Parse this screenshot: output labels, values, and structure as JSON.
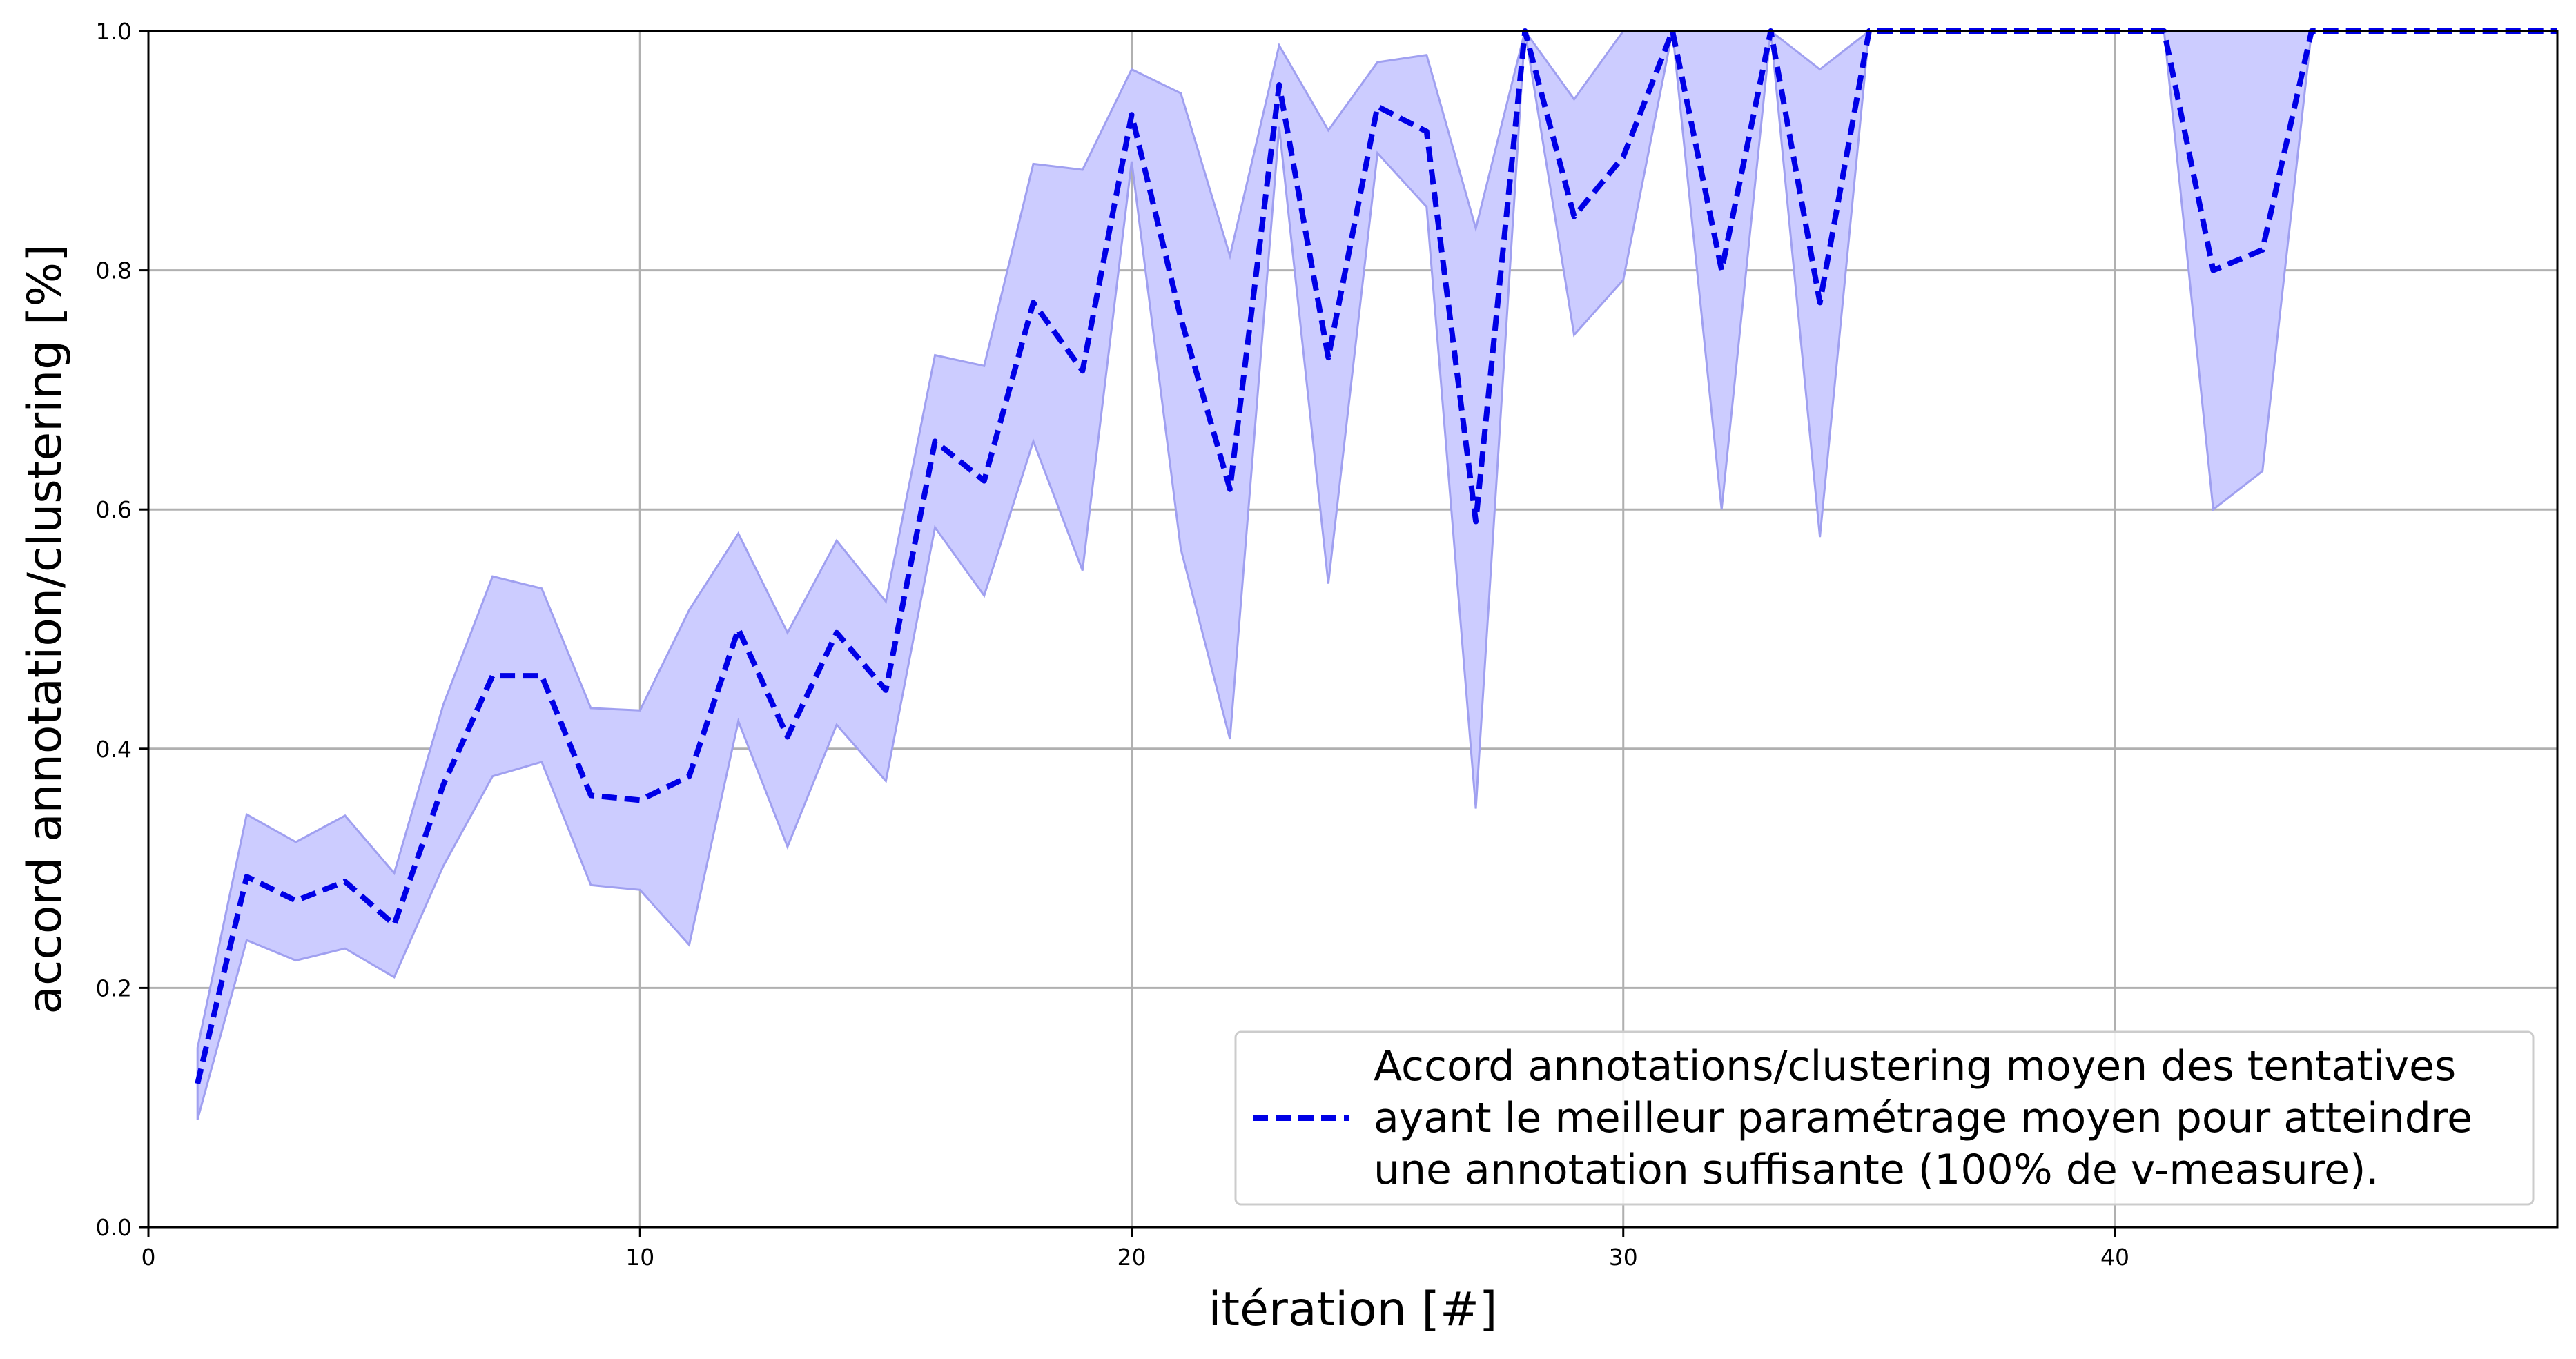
{
  "chart_data": {
    "type": "line",
    "title": "",
    "xlabel": "itération [#]",
    "ylabel": "accord annotation/clustering [%]",
    "xlim": [
      0,
      49
    ],
    "ylim": [
      0.0,
      1.0
    ],
    "xticks": [
      0,
      10,
      20,
      30,
      40
    ],
    "yticks": [
      0.0,
      0.2,
      0.4,
      0.6,
      0.8,
      1.0
    ],
    "xtick_labels": [
      "0",
      "10",
      "20",
      "30",
      "40"
    ],
    "ytick_labels": [
      "0.0",
      "0.2",
      "0.4",
      "0.6",
      "0.8",
      "1.0"
    ],
    "grid": true,
    "legend_position": "bottom-right",
    "legend_lines": [
      "Accord annotations/clustering moyen des tentatives",
      "ayant le meilleur paramétrage moyen pour atteindre",
      "une annotation suffisante (100% de v-measure)."
    ],
    "colors": {
      "line": "#0000e6",
      "band": "#ccccff",
      "band_edge": "#a0a0f0",
      "grid": "#b0b0b0"
    },
    "x": [
      1,
      2,
      3,
      4,
      5,
      6,
      7,
      8,
      9,
      10,
      11,
      12,
      13,
      14,
      15,
      16,
      17,
      18,
      19,
      20,
      21,
      22,
      23,
      24,
      25,
      26,
      27,
      28,
      29,
      30,
      31,
      32,
      33,
      34,
      35,
      36,
      37,
      38,
      39,
      40,
      41,
      42,
      43,
      44,
      45,
      46,
      47,
      48,
      49
    ],
    "series": [
      {
        "name": "Accord annotations/clustering moyen des tentatives ayant le meilleur paramétrage moyen pour atteindre une annotation suffisante (100% de v-measure).",
        "style": "dashed",
        "values": [
          0.12,
          0.293,
          0.273,
          0.289,
          0.253,
          0.37,
          0.461,
          0.461,
          0.361,
          0.357,
          0.377,
          0.5,
          0.41,
          0.497,
          0.449,
          0.657,
          0.624,
          0.773,
          0.716,
          0.93,
          0.76,
          0.617,
          0.955,
          0.727,
          0.937,
          0.916,
          0.59,
          1.0,
          0.845,
          0.895,
          1.0,
          0.8,
          1.0,
          0.773,
          1.0,
          1.0,
          1.0,
          1.0,
          1.0,
          1.0,
          1.0,
          0.8,
          0.817,
          1.0,
          1.0,
          1.0,
          1.0,
          1.0,
          1.0
        ],
        "upper": [
          0.15,
          0.345,
          0.322,
          0.344,
          0.296,
          0.437,
          0.544,
          0.534,
          0.434,
          0.432,
          0.516,
          0.58,
          0.497,
          0.574,
          0.523,
          0.729,
          0.72,
          0.889,
          0.884,
          0.968,
          0.948,
          0.812,
          0.988,
          0.917,
          0.974,
          0.98,
          0.835,
          1.0,
          0.943,
          1.0,
          1.0,
          1.0,
          1.0,
          0.968,
          1.0,
          1.0,
          1.0,
          1.0,
          1.0,
          1.0,
          1.0,
          1.0,
          1.0,
          1.0,
          1.0,
          1.0,
          1.0,
          1.0,
          1.0
        ],
        "lower": [
          0.09,
          0.24,
          0.223,
          0.233,
          0.209,
          0.302,
          0.377,
          0.389,
          0.286,
          0.282,
          0.236,
          0.423,
          0.318,
          0.42,
          0.373,
          0.585,
          0.528,
          0.657,
          0.549,
          0.891,
          0.567,
          0.408,
          0.92,
          0.538,
          0.898,
          0.853,
          0.35,
          1.0,
          0.746,
          0.792,
          1.0,
          0.6,
          1.0,
          0.577,
          1.0,
          1.0,
          1.0,
          1.0,
          1.0,
          1.0,
          1.0,
          0.6,
          0.632,
          1.0,
          1.0,
          1.0,
          1.0,
          1.0,
          1.0
        ]
      }
    ]
  }
}
